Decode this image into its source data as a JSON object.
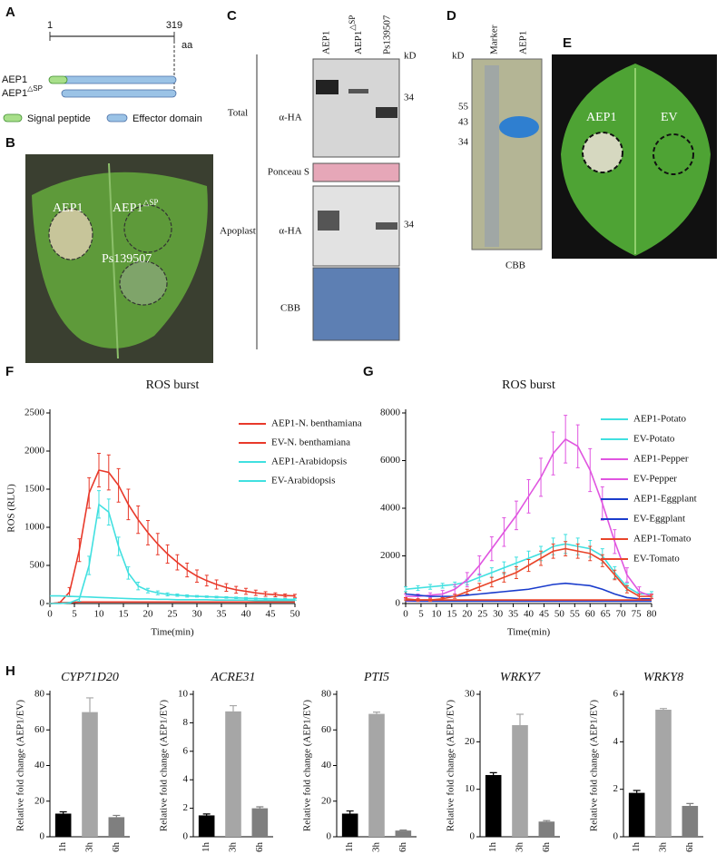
{
  "figure": {
    "panel_labels": [
      "A",
      "B",
      "C",
      "D",
      "E",
      "F",
      "G",
      "H"
    ],
    "A": {
      "start": "1",
      "end": "319",
      "unit": "aa",
      "constructs": [
        {
          "name": "AEP1"
        },
        {
          "name": "AEP1",
          "sup": "△SP"
        }
      ],
      "legend": [
        "Signal peptide",
        "Effector domain"
      ]
    },
    "B": {
      "labels": [
        {
          "name": "AEP1"
        },
        {
          "name": "AEP1",
          "sup": "△SP"
        },
        {
          "name": "Ps139507"
        }
      ]
    },
    "C": {
      "lanes": [
        {
          "name": "AEP1"
        },
        {
          "name": "AEP1",
          "sup": "△SP"
        },
        {
          "name": "Ps139507"
        }
      ],
      "unit": "kD",
      "size_markers": [
        "34",
        "34"
      ],
      "sections": [
        "Total",
        "Apoplast"
      ],
      "rows": [
        "α-HA",
        "Ponceau S",
        "α-HA",
        "CBB"
      ]
    },
    "D": {
      "unit": "kD",
      "lanes": [
        "Marker",
        "AEP1"
      ],
      "markers": [
        "55",
        "43",
        "34"
      ],
      "stain": "CBB"
    },
    "E": {
      "labels": [
        "AEP1",
        "EV"
      ]
    }
  },
  "chart_data": [
    {
      "type": "line",
      "title": "ROS burst",
      "xlabel": "Time(min)",
      "ylabel": "ROS (RLU)",
      "legend": "upper right",
      "x": [
        0,
        2,
        4,
        6,
        8,
        10,
        12,
        14,
        16,
        18,
        20,
        22,
        24,
        26,
        28,
        30,
        32,
        34,
        36,
        38,
        40,
        42,
        44,
        46,
        48,
        50
      ],
      "xlim": [
        0,
        50
      ],
      "xticks": [
        0,
        5,
        10,
        15,
        20,
        25,
        30,
        35,
        40,
        45,
        50
      ],
      "ylim": [
        0,
        2500
      ],
      "yticks": [
        0,
        500,
        1000,
        1500,
        2000,
        2500
      ],
      "series": [
        {
          "name": "AEP1-N. benthamiana",
          "color": "#e8392a",
          "values": [
            0,
            10,
            150,
            700,
            1450,
            1750,
            1720,
            1550,
            1300,
            1100,
            930,
            780,
            650,
            540,
            440,
            360,
            300,
            250,
            210,
            180,
            160,
            140,
            125,
            115,
            105,
            100
          ],
          "errors": [
            5,
            10,
            60,
            150,
            200,
            220,
            230,
            220,
            200,
            180,
            160,
            140,
            120,
            100,
            90,
            80,
            70,
            60,
            50,
            45,
            40,
            35,
            30,
            25,
            20,
            20
          ]
        },
        {
          "name": "EV-N. benthamiana",
          "color": "#e8392a",
          "values": [
            0,
            10,
            15,
            20,
            20,
            20,
            20,
            20,
            20,
            20,
            20,
            20,
            20,
            20,
            20,
            20,
            20,
            20,
            20,
            20,
            20,
            20,
            20,
            20,
            20,
            20
          ]
        },
        {
          "name": "AEP1-Arabidopsis",
          "color": "#40e0e0",
          "values": [
            0,
            0,
            10,
            60,
            500,
            1300,
            1200,
            750,
            400,
            230,
            170,
            140,
            120,
            110,
            100,
            95,
            90,
            85,
            80,
            75,
            70,
            65,
            60,
            60,
            55,
            55
          ],
          "errors": [
            0,
            0,
            5,
            30,
            120,
            180,
            170,
            120,
            80,
            50,
            30,
            25,
            20,
            15,
            15,
            10,
            10,
            10,
            10,
            10,
            10,
            10,
            10,
            10,
            10,
            10
          ]
        },
        {
          "name": "EV-Arabidopsis",
          "color": "#40e0e0",
          "values": [
            100,
            100,
            95,
            90,
            85,
            80,
            75,
            70,
            65,
            60,
            60,
            55,
            55,
            50,
            50,
            50,
            50,
            45,
            45,
            45,
            45,
            40,
            40,
            40,
            40,
            40
          ]
        }
      ]
    },
    {
      "type": "line",
      "title": "ROS burst",
      "xlabel": "Time(min)",
      "legend": "upper right",
      "x": [
        0,
        4,
        8,
        12,
        16,
        20,
        24,
        28,
        32,
        36,
        40,
        44,
        48,
        52,
        56,
        60,
        64,
        68,
        72,
        76,
        80
      ],
      "xlim": [
        0,
        80
      ],
      "xticks": [
        0,
        5,
        10,
        15,
        20,
        25,
        30,
        35,
        40,
        45,
        50,
        55,
        60,
        65,
        70,
        75,
        80
      ],
      "ylim": [
        0,
        8000
      ],
      "yticks": [
        0,
        2000,
        4000,
        6000,
        8000
      ],
      "series": [
        {
          "name": "AEP1-Potato",
          "color": "#40e0e0",
          "values": [
            600,
            650,
            700,
            750,
            800,
            900,
            1100,
            1300,
            1500,
            1700,
            1900,
            2100,
            2400,
            2500,
            2400,
            2300,
            2000,
            1300,
            700,
            400,
            400
          ],
          "errors": [
            100,
            100,
            100,
            100,
            100,
            120,
            150,
            200,
            250,
            250,
            300,
            300,
            350,
            400,
            350,
            350,
            300,
            250,
            150,
            100,
            100
          ]
        },
        {
          "name": "EV-Potato",
          "color": "#40e0e0",
          "values": [
            150,
            120,
            100,
            100,
            100,
            100,
            100,
            100,
            100,
            100,
            100,
            100,
            100,
            100,
            100,
            100,
            100,
            100,
            100,
            100,
            100
          ]
        },
        {
          "name": "AEP1-Pepper",
          "color": "#e055e0",
          "values": [
            300,
            300,
            350,
            400,
            600,
            1000,
            1600,
            2300,
            3000,
            3700,
            4500,
            5300,
            6300,
            6900,
            6600,
            5600,
            4200,
            2600,
            1200,
            500,
            300
          ],
          "errors": [
            100,
            100,
            100,
            150,
            200,
            300,
            400,
            500,
            600,
            600,
            700,
            800,
            900,
            1000,
            900,
            900,
            700,
            500,
            300,
            200,
            100
          ]
        },
        {
          "name": "EV-Pepper",
          "color": "#e055e0",
          "values": [
            100,
            100,
            100,
            100,
            100,
            100,
            100,
            100,
            100,
            100,
            100,
            100,
            100,
            100,
            100,
            100,
            100,
            100,
            100,
            100,
            100
          ]
        },
        {
          "name": "AEP1-Eggplant",
          "color": "#1a3ccc",
          "values": [
            400,
            350,
            300,
            300,
            300,
            350,
            400,
            450,
            500,
            550,
            600,
            700,
            800,
            850,
            800,
            750,
            600,
            400,
            250,
            200,
            200
          ]
        },
        {
          "name": "EV-Eggplant",
          "color": "#1a3ccc",
          "values": [
            120,
            100,
            100,
            100,
            100,
            100,
            100,
            100,
            100,
            100,
            100,
            100,
            100,
            100,
            100,
            100,
            100,
            100,
            100,
            100,
            100
          ]
        },
        {
          "name": "AEP1-Tomato",
          "color": "#e8452a",
          "values": [
            200,
            150,
            150,
            200,
            300,
            500,
            700,
            900,
            1100,
            1300,
            1600,
            1900,
            2200,
            2300,
            2200,
            2100,
            1800,
            1200,
            600,
            300,
            300
          ],
          "errors": [
            50,
            50,
            50,
            50,
            80,
            100,
            150,
            200,
            200,
            250,
            250,
            300,
            300,
            300,
            300,
            300,
            250,
            200,
            150,
            100,
            80
          ]
        },
        {
          "name": "EV-Tomato",
          "color": "#e8452a",
          "values": [
            150,
            150,
            150,
            150,
            150,
            150,
            150,
            150,
            150,
            150,
            150,
            150,
            150,
            150,
            150,
            150,
            150,
            150,
            150,
            150,
            150
          ]
        }
      ]
    },
    {
      "type": "bar",
      "title": "CYP71D20",
      "ylabel": "Relative fold change (AEP1/EV)",
      "categories": [
        "1h",
        "3h",
        "6h"
      ],
      "values": [
        13,
        70,
        11
      ],
      "errors": [
        1,
        8,
        1
      ],
      "colors": [
        "#000000",
        "#a6a6a6",
        "#7f7f7f"
      ],
      "ylim": [
        0,
        80
      ],
      "yticks": [
        0,
        20,
        40,
        60,
        80
      ]
    },
    {
      "type": "bar",
      "title": "ACRE31",
      "ylabel": "Relative fold change (AEP1/EV)",
      "categories": [
        "1h",
        "3h",
        "6h"
      ],
      "values": [
        1.5,
        8.8,
        2.0
      ],
      "errors": [
        0.1,
        0.4,
        0.1
      ],
      "colors": [
        "#000000",
        "#a6a6a6",
        "#7f7f7f"
      ],
      "ylim": [
        0,
        10
      ],
      "yticks": [
        0,
        2,
        4,
        6,
        8,
        10
      ]
    },
    {
      "type": "bar",
      "title": "PTI5",
      "ylabel": "Relative fold change (AEP1/EV)",
      "categories": [
        "1h",
        "3h",
        "6h"
      ],
      "values": [
        13,
        69,
        3.5
      ],
      "errors": [
        1.5,
        1,
        0.3
      ],
      "colors": [
        "#000000",
        "#a6a6a6",
        "#7f7f7f"
      ],
      "ylim": [
        0,
        80
      ],
      "yticks": [
        0,
        20,
        40,
        60,
        80
      ]
    },
    {
      "type": "bar",
      "title": "WRKY7",
      "ylabel": "Relative fold change (AEP1/EV)",
      "categories": [
        "1h",
        "3h",
        "6h"
      ],
      "values": [
        13,
        23.5,
        3.2
      ],
      "errors": [
        0.5,
        2.3,
        0.2
      ],
      "colors": [
        "#000000",
        "#a6a6a6",
        "#7f7f7f"
      ],
      "ylim": [
        0,
        30
      ],
      "yticks": [
        0,
        10,
        20,
        30
      ]
    },
    {
      "type": "bar",
      "title": "WRKY8",
      "ylabel": "Relative fold change (AEP1/EV)",
      "categories": [
        "1h",
        "3h",
        "6h"
      ],
      "values": [
        1.85,
        5.35,
        1.3
      ],
      "errors": [
        0.1,
        0.05,
        0.1
      ],
      "colors": [
        "#000000",
        "#a6a6a6",
        "#7f7f7f"
      ],
      "ylim": [
        0,
        6
      ],
      "yticks": [
        0,
        2,
        4,
        6
      ]
    }
  ]
}
